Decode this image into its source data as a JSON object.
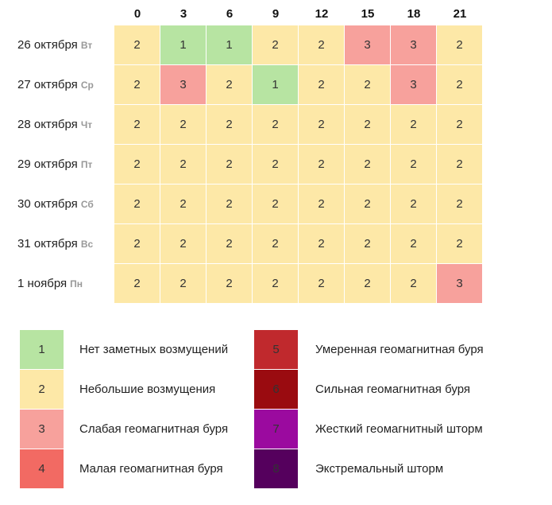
{
  "table": {
    "columns": [
      "0",
      "3",
      "6",
      "9",
      "12",
      "15",
      "18",
      "21"
    ],
    "rows": [
      {
        "date": "26 октября",
        "weekday": "Вт",
        "values": [
          2,
          1,
          1,
          2,
          2,
          3,
          3,
          2
        ]
      },
      {
        "date": "27 октября",
        "weekday": "Ср",
        "values": [
          2,
          3,
          2,
          1,
          2,
          2,
          3,
          2
        ]
      },
      {
        "date": "28 октября",
        "weekday": "Чт",
        "values": [
          2,
          2,
          2,
          2,
          2,
          2,
          2,
          2
        ]
      },
      {
        "date": "29 октября",
        "weekday": "Пт",
        "values": [
          2,
          2,
          2,
          2,
          2,
          2,
          2,
          2
        ]
      },
      {
        "date": "30 октября",
        "weekday": "Сб",
        "values": [
          2,
          2,
          2,
          2,
          2,
          2,
          2,
          2
        ]
      },
      {
        "date": "31 октября",
        "weekday": "Вс",
        "values": [
          2,
          2,
          2,
          2,
          2,
          2,
          2,
          2
        ]
      },
      {
        "date": "1 ноября",
        "weekday": "Пн",
        "values": [
          2,
          2,
          2,
          2,
          2,
          2,
          2,
          3
        ]
      }
    ]
  },
  "legend": [
    {
      "level": 1,
      "label": "Нет заметных возмущений",
      "color": "#b7e4a2"
    },
    {
      "level": 2,
      "label": "Небольшие возмущения",
      "color": "#fde8a7"
    },
    {
      "level": 3,
      "label": "Слабая геомагнитная буря",
      "color": "#f7a19c"
    },
    {
      "level": 4,
      "label": "Малая геомагнитная буря",
      "color": "#f26a63"
    },
    {
      "level": 5,
      "label": "Умеренная геомагнитная буря",
      "color": "#c0292d"
    },
    {
      "level": 6,
      "label": "Сильная геомагнитная буря",
      "color": "#9a0b10"
    },
    {
      "level": 7,
      "label": "Жесткий геомагнитный шторм",
      "color": "#9b0a9f"
    },
    {
      "level": 8,
      "label": "Экстремальный шторм",
      "color": "#55005d"
    }
  ]
}
